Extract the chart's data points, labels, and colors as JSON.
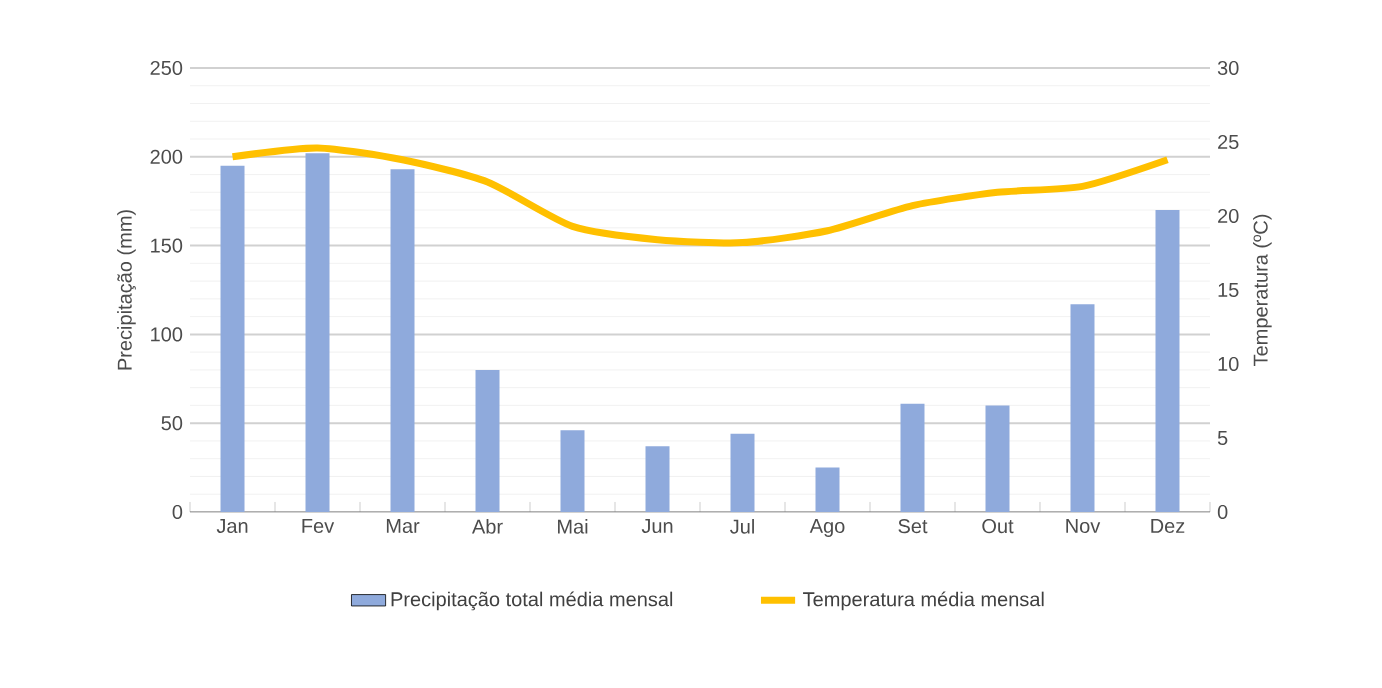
{
  "chart_data": {
    "type": "bar",
    "categories": [
      "Jan",
      "Fev",
      "Mar",
      "Abr",
      "Mai",
      "Jun",
      "Jul",
      "Ago",
      "Set",
      "Out",
      "Nov",
      "Dez"
    ],
    "ylabel": "Precipitação (mm)",
    "y2label": "Temperatura (ºC)",
    "ylim": [
      0,
      250
    ],
    "yticks": [
      0,
      50,
      100,
      150,
      200,
      250
    ],
    "y2lim": [
      0,
      30
    ],
    "y2ticks": [
      0,
      5,
      10,
      15,
      20,
      25,
      30
    ],
    "grid": "y",
    "legend": "bottom",
    "series": [
      {
        "name": "Precipitação total  média mensal",
        "color": "#8faadc",
        "values": [
          195,
          202,
          193,
          80,
          46,
          37,
          44,
          25,
          61,
          60,
          117,
          170
        ]
      },
      {
        "name": "Temperatura média mensal",
        "type": "line",
        "axis": "y2",
        "color": "#ffc000",
        "values": [
          24.0,
          24.6,
          23.8,
          22.3,
          19.3,
          18.4,
          18.2,
          19.0,
          20.7,
          21.6,
          22.0,
          23.8
        ]
      }
    ]
  }
}
